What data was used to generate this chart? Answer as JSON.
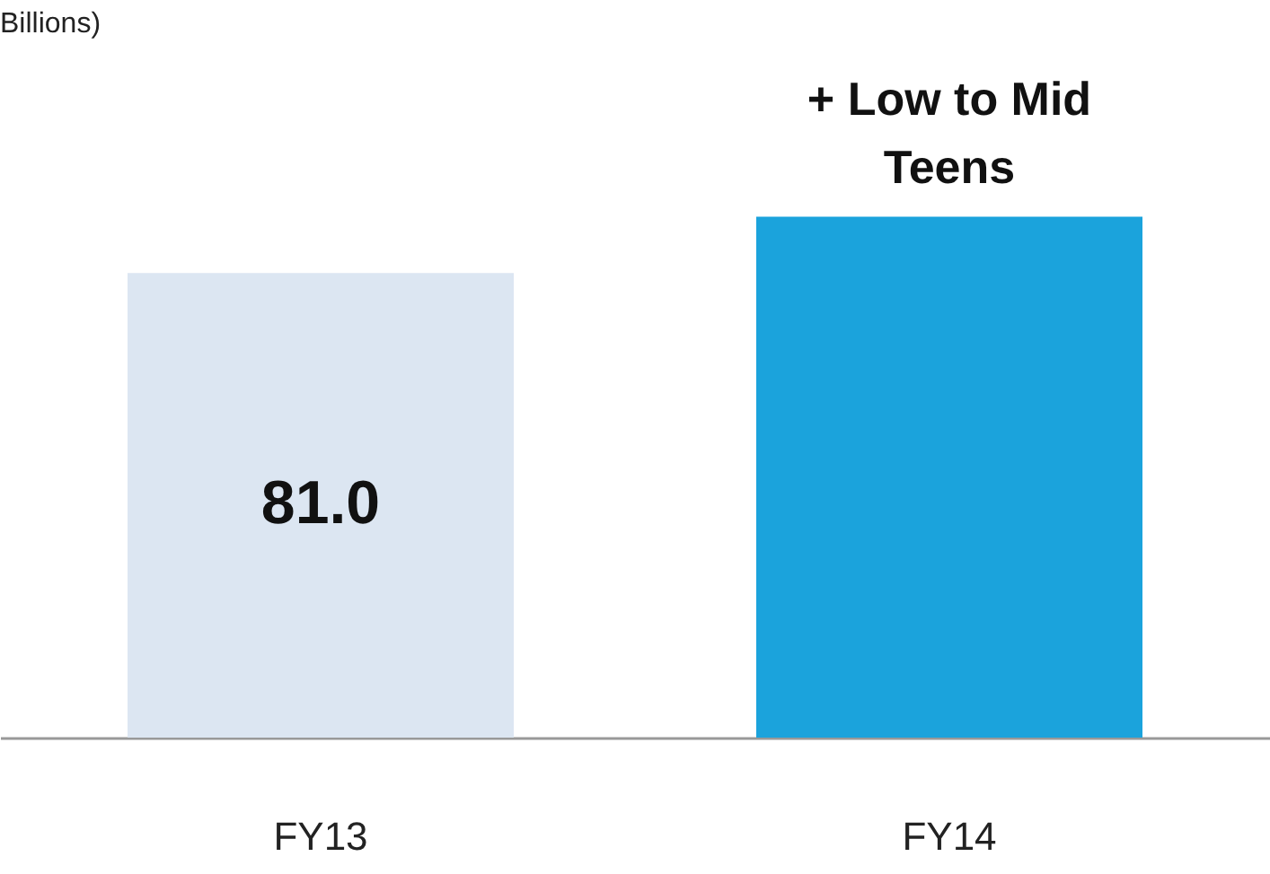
{
  "chart_data": {
    "type": "bar",
    "subtitle": "Billions)",
    "categories": [
      "FY13",
      "FY14"
    ],
    "values": [
      81.0,
      90.8
    ],
    "colors": [
      "#dce6f2",
      "#1ba3dc"
    ],
    "value_labels": [
      "81.0",
      null
    ],
    "annotations": [
      {
        "text": "+ Low to Mid Teens",
        "x": "FY14",
        "y": 90.8
      }
    ],
    "grid": false
  }
}
